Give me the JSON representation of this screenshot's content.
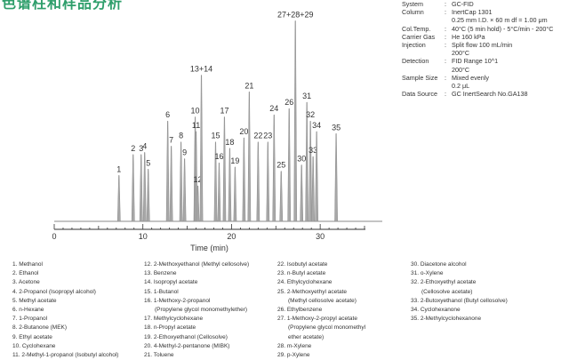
{
  "header": {
    "title": "色谱柱和样品分析"
  },
  "conditions": [
    {
      "key": "System",
      "value": "GC-FID"
    },
    {
      "key": "Column",
      "value": "InertCap 1301"
    },
    {
      "key": "",
      "value": "0.25 mm I.D. × 60 m   df = 1.00 μm"
    },
    {
      "key": "Col.Temp.",
      "value": "40°C (5 min hold) - 5°C/min - 200°C"
    },
    {
      "key": "Carrier Gas",
      "value": "He 160 kPa"
    },
    {
      "key": "Injection",
      "value": "Split flow 100 mL/min"
    },
    {
      "key": "",
      "value": "200°C"
    },
    {
      "key": "Detection",
      "value": "FID Range 10^1"
    },
    {
      "key": "",
      "value": "200°C"
    },
    {
      "key": "Sample Size",
      "value": "Mixed evenly"
    },
    {
      "key": "",
      "value": "0.2 μL"
    },
    {
      "key": "Data Source",
      "value": "GC InertSearch No.GA138"
    }
  ],
  "chart_data": {
    "type": "line",
    "title": "",
    "xlabel": "Time (min)",
    "ylabel": "",
    "xlim": [
      0,
      35
    ],
    "ylim": [
      0,
      100
    ],
    "x_ticks": [
      0,
      10,
      20,
      30
    ],
    "peaks": [
      {
        "label": "1",
        "time": 7.3,
        "height": 22
      },
      {
        "label": "2",
        "time": 8.9,
        "height": 32
      },
      {
        "label": "3",
        "time": 9.8,
        "height": 32
      },
      {
        "label": "4",
        "time": 10.2,
        "height": 33
      },
      {
        "label": "5",
        "time": 10.6,
        "height": 25
      },
      {
        "label": "6",
        "time": 12.8,
        "height": 48
      },
      {
        "label": "7",
        "time": 13.2,
        "height": 36
      },
      {
        "label": "8",
        "time": 14.3,
        "height": 38
      },
      {
        "label": "9",
        "time": 14.7,
        "height": 30
      },
      {
        "label": "10",
        "time": 15.9,
        "height": 50
      },
      {
        "label": "11",
        "time": 16.0,
        "height": 43
      },
      {
        "label": "12",
        "time": 16.2,
        "height": 17
      },
      {
        "label": "13+14",
        "time": 16.6,
        "height": 70
      },
      {
        "label": "15",
        "time": 18.2,
        "height": 38
      },
      {
        "label": "16",
        "time": 18.6,
        "height": 28
      },
      {
        "label": "17",
        "time": 19.2,
        "height": 50
      },
      {
        "label": "18",
        "time": 19.8,
        "height": 35
      },
      {
        "label": "19",
        "time": 20.4,
        "height": 26
      },
      {
        "label": "20",
        "time": 21.4,
        "height": 40
      },
      {
        "label": "21",
        "time": 22.0,
        "height": 62
      },
      {
        "label": "22",
        "time": 23.0,
        "height": 38
      },
      {
        "label": "23",
        "time": 24.1,
        "height": 38
      },
      {
        "label": "24",
        "time": 24.8,
        "height": 51
      },
      {
        "label": "25",
        "time": 25.6,
        "height": 24
      },
      {
        "label": "26",
        "time": 26.5,
        "height": 54
      },
      {
        "label": "27+28+29",
        "time": 27.2,
        "height": 96
      },
      {
        "label": "30",
        "time": 27.9,
        "height": 27
      },
      {
        "label": "31",
        "time": 28.5,
        "height": 57
      },
      {
        "label": "32",
        "time": 28.9,
        "height": 48
      },
      {
        "label": "33",
        "time": 29.2,
        "height": 31
      },
      {
        "label": "34",
        "time": 29.6,
        "height": 43
      },
      {
        "label": "35",
        "time": 31.8,
        "height": 42
      }
    ]
  },
  "compounds": [
    [
      "1. Methanol",
      "2. Ethanol",
      "3. Acetone",
      "4. 2-Propanol (Isopropyl alcohol)",
      "5. Methyl acetate",
      "6. n-Hexane",
      "7. 1-Propanol",
      "8. 2-Butanone (MEK)",
      "9. Ethyl acetate",
      "10. Cyclohexane",
      "11. 2-Methyl-1-propanol (Isobutyl alcohol)"
    ],
    [
      "12. 2-Methoxyethanol (Methyl cellosolve)",
      "13. Benzene",
      "14. Isopropyl acetate",
      "15. 1-Butanol",
      "16. 1-Methoxy-2-propanol",
      "(Propylene glycol monomethylether)",
      "17. Methylcyclohexane",
      "18. n-Propyl acetate",
      "19. 2-Ethoxyethanol (Cellosolve)",
      "20. 4-Methyl-2-pentanone (MIBK)",
      "21. Toluene"
    ],
    [
      "22. Isobutyl acetate",
      "23. n-Butyl acetate",
      "24. Ethylcyclohexane",
      "25. 2-Methoxyethyl acetate",
      "(Methyl cellosolve acetate)",
      "26. Ethylbenzene",
      "27. 1-Methoxy-2-propyl acetate",
      "(Propylene glycol monomethyl",
      "ether acetate)",
      "28. m-Xylene",
      "29. p-Xylene"
    ],
    [
      "30. Diacetone alcohol",
      "31. o-Xylene",
      "32. 2-Ethoxyethyl acetate",
      "(Cellosolve acetate)",
      "33. 2-Butoxyethanol (Butyl cellosolve)",
      "34. Cyclohexanone",
      "35. 2-Methylcyclohexanone"
    ]
  ]
}
